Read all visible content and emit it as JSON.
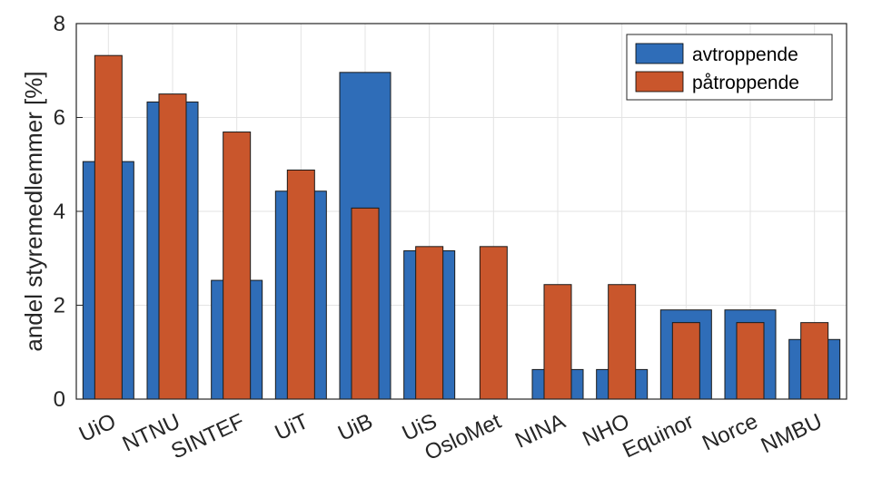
{
  "chart_data": {
    "type": "bar",
    "title": "",
    "xlabel": "",
    "ylabel": "andel styremedlemmer [%]",
    "ylim": [
      0,
      8
    ],
    "yticks": [
      0,
      2,
      4,
      6,
      8
    ],
    "grid": true,
    "legend_position": "top-right",
    "categories": [
      "UiO",
      "NTNU",
      "SINTEF",
      "UiT",
      "UiB",
      "UiS",
      "OsloMet",
      "NINA",
      "NHO",
      "Equinor",
      "Norce",
      "NMBU"
    ],
    "series": [
      {
        "name": "avtroppende",
        "color": "#2f6db8",
        "values": [
          5.06,
          6.33,
          2.53,
          4.43,
          6.96,
          3.16,
          0,
          0.63,
          0.63,
          1.9,
          1.9,
          1.27
        ]
      },
      {
        "name": "påtroppende",
        "color": "#c9562c",
        "values": [
          7.32,
          6.5,
          5.69,
          4.88,
          4.07,
          3.25,
          3.25,
          2.44,
          2.44,
          1.63,
          1.63,
          1.63
        ]
      }
    ]
  }
}
